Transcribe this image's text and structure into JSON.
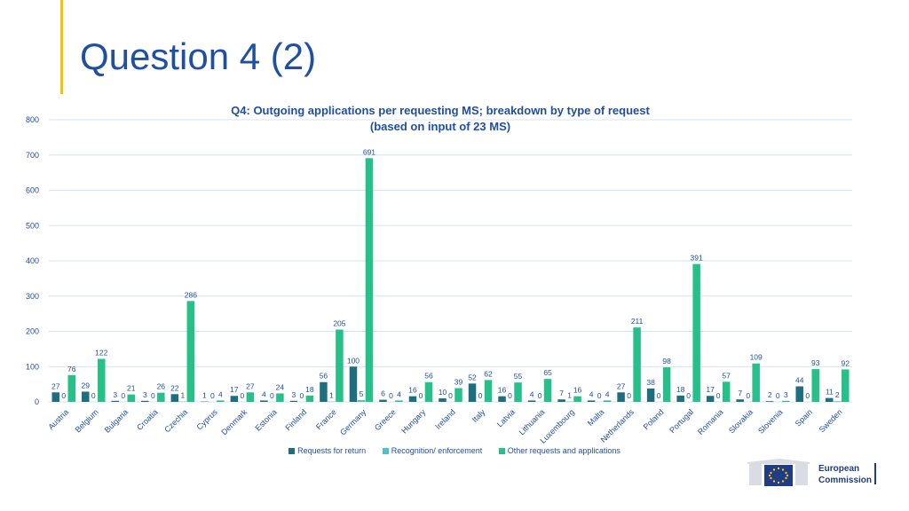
{
  "slide": {
    "title": "Question 4 (2)"
  },
  "chart_data": {
    "type": "bar",
    "title": "Q4: Outgoing applications per requesting MS; breakdown by type of request",
    "subtitle": "(based on input of 23 MS)",
    "xlabel": "",
    "ylabel": "",
    "ylim": [
      0,
      800
    ],
    "yticks": [
      0,
      100,
      200,
      300,
      400,
      500,
      600,
      700,
      800
    ],
    "grid": true,
    "legend_position": "bottom",
    "categories": [
      "Austria",
      "Belgium",
      "Bulgaria",
      "Croatia",
      "Czechia",
      "Cyprus",
      "Denmark",
      "Estonia",
      "Finland",
      "France",
      "Germany",
      "Greece",
      "Hungary",
      "Ireland",
      "Italy",
      "Latvia",
      "Lithuania",
      "Luxembourg",
      "Malta",
      "Netherlands",
      "Poland",
      "Portugal",
      "Romania",
      "Slovakia",
      "Slovenia",
      "Spain",
      "Sweden"
    ],
    "series": [
      {
        "name": "Requests for return",
        "color": "#1f6e80",
        "values": [
          27,
          29,
          3,
          3,
          22,
          1,
          17,
          4,
          3,
          56,
          100,
          6,
          16,
          10,
          52,
          16,
          4,
          7,
          4,
          27,
          38,
          18,
          17,
          7,
          2,
          44,
          11
        ]
      },
      {
        "name": "Recognition/ enforcement",
        "color": "#4cc3c9",
        "values": [
          0,
          0,
          0,
          0,
          1,
          0,
          0,
          0,
          0,
          1,
          5,
          0,
          0,
          0,
          0,
          0,
          0,
          1,
          0,
          0,
          0,
          0,
          0,
          0,
          0,
          0,
          2
        ]
      },
      {
        "name": "Other requests and applications",
        "color": "#27c08a",
        "values": [
          76,
          122,
          21,
          26,
          286,
          4,
          27,
          24,
          18,
          205,
          691,
          4,
          56,
          39,
          62,
          55,
          65,
          16,
          4,
          211,
          98,
          391,
          57,
          109,
          3,
          93,
          92
        ]
      }
    ]
  },
  "footer": {
    "logo_line1": "European",
    "logo_line2": "Commission"
  }
}
